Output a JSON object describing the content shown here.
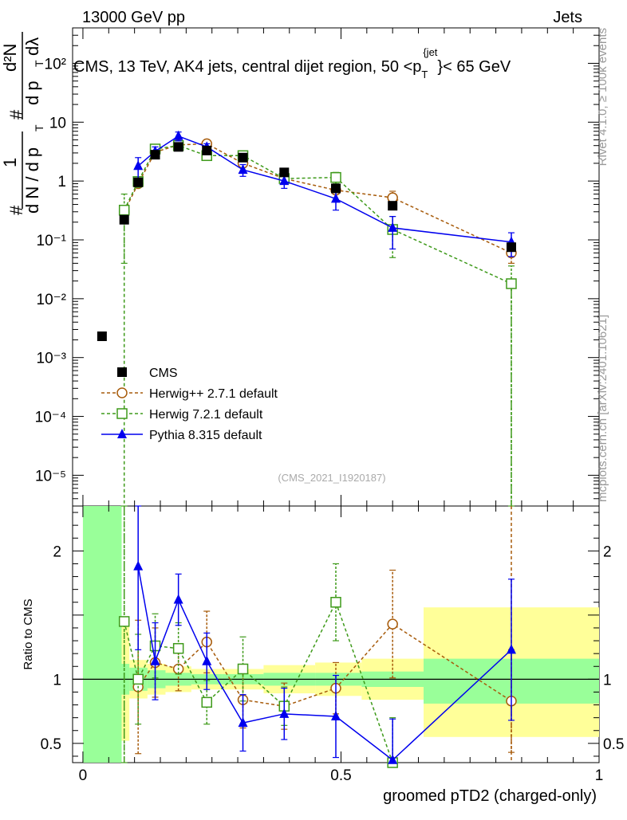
{
  "header": {
    "left": "13000 GeV pp",
    "right": "Jets"
  },
  "side_labels": {
    "rivet": "Rivet 4.1.0, ≥ 100k events",
    "mcplots": "mcplots.cern.ch [arXiv:2401.10621]"
  },
  "ylabel_main": {
    "hash1": "#",
    "one": "1",
    "dN_dpT": "d N / d p",
    "T": "T",
    "hash2": "#",
    "d2N": "d²N",
    "dpT_dlambda": "d p",
    "T2": "T",
    "dlambda": "dλ"
  },
  "chart_data": [
    {
      "type": "scatter",
      "panel": "main",
      "title": "CMS, 13 TeV, AK4 jets, central dijet region, 50 <p_T^{jet}< 65 GeV",
      "title_parts": {
        "pre": "CMS, 13 TeV, AK4 jets, central dijet region, 50 <p",
        "sub": "T",
        "sup": "{jet",
        "post": "}< 65 GeV"
      },
      "watermark": "(CMS_2021_I1920187)",
      "yscale": "log",
      "ylim": [
        3e-06,
        400
      ],
      "xlim": [
        -0.02,
        1.0
      ],
      "y_tick_labels": [
        "10⁻⁵",
        "10⁻⁴",
        "10⁻³",
        "10⁻²",
        "10⁻¹",
        "1",
        "10",
        "10²"
      ],
      "legend": [
        "CMS",
        "Herwig++ 2.7.1 default",
        "Herwig 7.2.1 default",
        "Pythia 8.315 default"
      ],
      "legend_position": "lower-left",
      "series": [
        {
          "name": "CMS",
          "color": "#000000",
          "marker": "filled-square",
          "x": [
            0.037,
            0.08,
            0.107,
            0.14,
            0.185,
            0.24,
            0.31,
            0.39,
            0.49,
            0.6,
            0.83
          ],
          "y": [
            0.0023,
            0.22,
            0.95,
            2.8,
            3.8,
            3.3,
            2.5,
            1.4,
            0.75,
            0.38,
            0.075
          ]
        },
        {
          "name": "Herwig++ 2.7.1 default",
          "color": "#a75b0b",
          "marker": "open-circle",
          "dashed": true,
          "x": [
            0.08,
            0.107,
            0.14,
            0.185,
            0.24,
            0.31,
            0.39,
            0.49,
            0.6,
            0.83
          ],
          "y": [
            0.3,
            0.9,
            3.1,
            4.1,
            4.3,
            2.0,
            1.1,
            0.7,
            0.52,
            0.06
          ],
          "yerr": [
            0.05,
            0.1,
            0.3,
            0.4,
            0.4,
            0.2,
            0.15,
            0.1,
            0.15,
            0.02
          ]
        },
        {
          "name": "Herwig 7.2.1 default",
          "color": "#3e9a1a",
          "marker": "open-square",
          "dashed": true,
          "x": [
            0.08,
            0.107,
            0.14,
            0.185,
            0.24,
            0.31,
            0.39,
            0.49,
            0.6,
            0.83
          ],
          "y": [
            0.32,
            0.98,
            3.5,
            4.0,
            2.7,
            2.7,
            1.1,
            1.15,
            0.15,
            0.018
          ],
          "yerr": [
            0.28,
            0.2,
            0.4,
            0.4,
            0.4,
            0.4,
            0.2,
            0.25,
            0.1,
            0.018
          ]
        },
        {
          "name": "Pythia 8.315 default",
          "color": "#0000ee",
          "marker": "filled-triangle",
          "x": [
            0.107,
            0.14,
            0.185,
            0.24,
            0.31,
            0.39,
            0.49,
            0.6,
            0.83
          ],
          "y": [
            1.8,
            3.2,
            5.8,
            3.8,
            1.55,
            1.0,
            0.5,
            0.16,
            0.092
          ],
          "yerr": [
            0.7,
            0.6,
            1.0,
            0.5,
            0.35,
            0.25,
            0.18,
            0.09,
            0.04
          ]
        }
      ]
    },
    {
      "type": "scatter",
      "panel": "ratio",
      "ylabel": "Ratio to CMS",
      "xlabel": "groomed pTD2 (charged-only)",
      "ylim": [
        0.35,
        2.35
      ],
      "xlim": [
        -0.02,
        1.0
      ],
      "y_ticks": [
        0.5,
        1,
        1.5,
        2
      ],
      "y_tick_labels": [
        "0.5",
        "1",
        "",
        "2"
      ],
      "x_ticks": [
        0,
        0.5,
        1
      ],
      "x_tick_labels": [
        "0",
        "0.5",
        "1"
      ],
      "uncertainty_bands": {
        "edges": [
          0.0,
          0.075,
          0.09,
          0.125,
          0.16,
          0.21,
          0.27,
          0.35,
          0.45,
          0.54,
          0.66,
          1.0
        ],
        "green_low": [
          0.35,
          0.88,
          0.91,
          0.93,
          0.95,
          0.96,
          0.96,
          0.95,
          0.95,
          0.94,
          0.81
        ],
        "green_high": [
          2.35,
          1.12,
          1.09,
          1.07,
          1.05,
          1.04,
          1.04,
          1.05,
          1.05,
          1.06,
          1.16
        ],
        "yellow_low": [
          0.35,
          0.52,
          0.85,
          0.88,
          0.9,
          0.92,
          0.92,
          0.89,
          0.87,
          0.84,
          0.55
        ],
        "yellow_high": [
          2.35,
          1.48,
          1.15,
          1.12,
          1.1,
          1.08,
          1.08,
          1.11,
          1.13,
          1.16,
          1.56
        ]
      },
      "series": [
        {
          "name": "Herwig++ 2.7.1 default",
          "color": "#a75b0b",
          "marker": "open-circle",
          "dashed": true,
          "x": [
            0.107,
            0.14,
            0.185,
            0.24,
            0.31,
            0.39,
            0.49,
            0.6,
            0.83
          ],
          "y": [
            0.94,
            1.13,
            1.08,
            1.29,
            0.84,
            0.79,
            0.93,
            1.43,
            0.83
          ],
          "yerr": [
            0.52,
            0.27,
            0.17,
            0.24,
            0.22,
            0.18,
            0.2,
            0.42,
            0.4
          ]
        },
        {
          "name": "Herwig 7.2.1 default",
          "color": "#3e9a1a",
          "marker": "open-square",
          "dashed": true,
          "x": [
            0.08,
            0.107,
            0.14,
            0.185,
            0.24,
            0.31,
            0.39,
            0.49,
            0.6
          ],
          "y": [
            1.45,
            1.0,
            1.26,
            1.24,
            0.82,
            1.08,
            0.79,
            1.6,
            0.35
          ],
          "yerr": [
            1.3,
            0.35,
            0.25,
            0.2,
            0.17,
            0.25,
            0.15,
            0.3,
            0.35
          ]
        },
        {
          "name": "Pythia 8.315 default",
          "color": "#0000ee",
          "marker": "filled-triangle",
          "x": [
            0.107,
            0.14,
            0.185,
            0.24,
            0.31,
            0.39,
            0.49,
            0.6,
            0.83
          ],
          "y": [
            1.88,
            1.14,
            1.62,
            1.14,
            0.66,
            0.73,
            0.71,
            0.37,
            1.23
          ],
          "yerr": [
            0.65,
            0.3,
            0.2,
            0.22,
            0.22,
            0.2,
            0.32,
            0.32,
            0.55
          ]
        }
      ]
    }
  ]
}
